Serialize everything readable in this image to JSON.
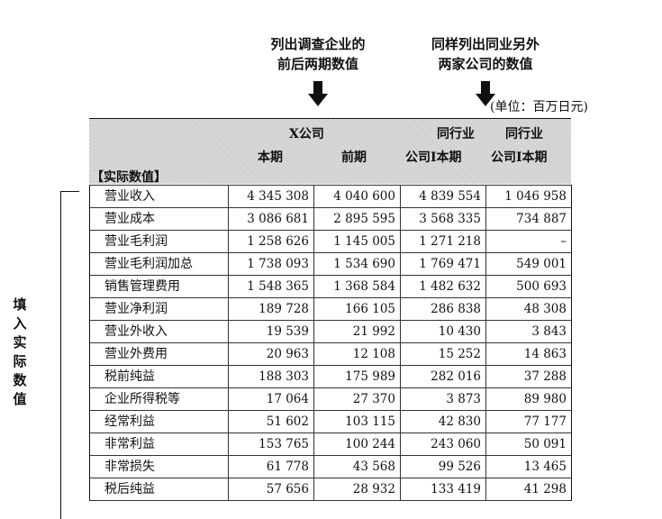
{
  "notes": {
    "left": {
      "line1": "列出调查企业的",
      "line2": "前后两期数值"
    },
    "right": {
      "line1": "同样列出同业另外",
      "line2": "两家公司的数值"
    }
  },
  "unit": "(单位：百万日元)",
  "header": {
    "company_x": "X公司",
    "current": "本期",
    "previous": "前期",
    "peer1_line1": "同行业",
    "peer1_line2": "公司Ⅰ本期",
    "peer2_line1": "同行业",
    "peer2_line2": "公司Ⅰ本期",
    "section": "【实际数值】"
  },
  "side_label": [
    "填",
    "入",
    "实",
    "际",
    "数",
    "值"
  ],
  "rows": [
    {
      "label": "营业收入",
      "values": [
        "4 345 308",
        "4 040 600",
        "4 839 554",
        "1 046 958"
      ]
    },
    {
      "label": "营业成本",
      "values": [
        "3 086 681",
        "2 895 595",
        "3 568 335",
        "734 887"
      ]
    },
    {
      "label": "营业毛利润",
      "values": [
        "1 258 626",
        "1 145 005",
        "1 271 218",
        "–"
      ]
    },
    {
      "label": "营业毛利润加总",
      "values": [
        "1 738 093",
        "1 534 690",
        "1 769 471",
        "549 001"
      ]
    },
    {
      "label": "销售管理费用",
      "values": [
        "1 548 365",
        "1 368 584",
        "1 482 632",
        "500 693"
      ]
    },
    {
      "label": "营业净利润",
      "values": [
        "189 728",
        "166 105",
        "286 838",
        "48 308"
      ]
    },
    {
      "label": "营业外收入",
      "values": [
        "19 539",
        "21 992",
        "10 430",
        "3 843"
      ]
    },
    {
      "label": "营业外费用",
      "values": [
        "20 963",
        "12 108",
        "15 252",
        "14 863"
      ]
    },
    {
      "label": "税前纯益",
      "values": [
        "188 303",
        "175 989",
        "282 016",
        "37 288"
      ]
    },
    {
      "label": "企业所得税等",
      "values": [
        "17 064",
        "27 370",
        "3 873",
        "89 980"
      ]
    },
    {
      "label": "经常利益",
      "values": [
        "51 602",
        "103 115",
        "42 830",
        "77 177"
      ]
    },
    {
      "label": "非常利益",
      "values": [
        "153 765",
        "100 244",
        "243 060",
        "50 091"
      ]
    },
    {
      "label": "非常损失",
      "values": [
        "61 778",
        "43 568",
        "99 526",
        "13 465"
      ]
    },
    {
      "label": "税后纯益",
      "values": [
        "57 656",
        "28 932",
        "133 419",
        "41 298"
      ]
    }
  ]
}
